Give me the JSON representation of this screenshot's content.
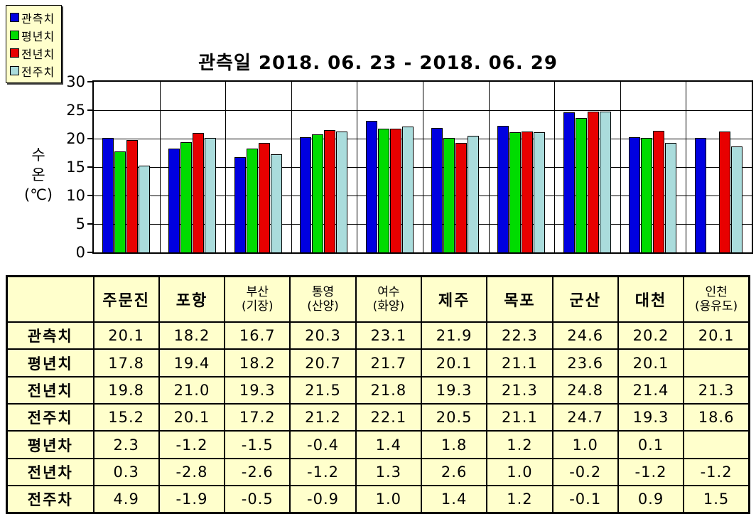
{
  "title": "관측일 2018. 06. 23 - 2018. 06. 29",
  "y_axis": {
    "title_lines": [
      "수",
      "온",
      "(℃)"
    ],
    "ticks": [
      30,
      25,
      20,
      15,
      10,
      5,
      0
    ]
  },
  "legend": {
    "items": [
      {
        "label": "관측치",
        "color": "#0000E0"
      },
      {
        "label": "평년치",
        "color": "#00DC00"
      },
      {
        "label": "전년치",
        "color": "#E80000"
      },
      {
        "label": "전주치",
        "color": "#AADCDC"
      }
    ]
  },
  "chart_data": {
    "type": "bar",
    "title": "관측일 2018. 06. 23 - 2018. 06. 29",
    "xlabel": "",
    "ylabel": "수온(℃)",
    "ylim": [
      0,
      30
    ],
    "yticks": [
      0,
      5,
      10,
      15,
      20,
      25,
      30
    ],
    "grid": true,
    "legend_position": "top-left",
    "categories": [
      "주문진",
      "포항",
      "부산(기장)",
      "통영(산양)",
      "여수(화양)",
      "제주",
      "목포",
      "군산",
      "대천",
      "인천(용유도)"
    ],
    "series": [
      {
        "name": "관측치",
        "color": "#0000E0",
        "values": [
          20.1,
          18.2,
          16.7,
          20.3,
          23.1,
          21.9,
          22.3,
          24.6,
          20.2,
          20.1
        ]
      },
      {
        "name": "평년치",
        "color": "#00DC00",
        "values": [
          17.8,
          19.4,
          18.2,
          20.7,
          21.7,
          20.1,
          21.1,
          23.6,
          20.1,
          null
        ]
      },
      {
        "name": "전년치",
        "color": "#E80000",
        "values": [
          19.8,
          21.0,
          19.3,
          21.5,
          21.8,
          19.3,
          21.3,
          24.8,
          21.4,
          21.3
        ]
      },
      {
        "name": "전주치",
        "color": "#AADCDC",
        "values": [
          15.2,
          20.1,
          17.2,
          21.2,
          22.1,
          20.5,
          21.1,
          24.7,
          19.3,
          18.6
        ]
      }
    ]
  },
  "table": {
    "corner_header": "",
    "col_headers": [
      {
        "lines": [
          "주문진"
        ]
      },
      {
        "lines": [
          "포항"
        ]
      },
      {
        "lines": [
          "부산",
          "(기장)"
        ]
      },
      {
        "lines": [
          "통영",
          "(산양)"
        ]
      },
      {
        "lines": [
          "여수",
          "(화양)"
        ]
      },
      {
        "lines": [
          "제주"
        ]
      },
      {
        "lines": [
          "목포"
        ]
      },
      {
        "lines": [
          "군산"
        ]
      },
      {
        "lines": [
          "대천"
        ]
      },
      {
        "lines": [
          "인천",
          "(용유도)"
        ]
      }
    ],
    "rows": [
      {
        "label": "관측치",
        "bold": false,
        "values": [
          "20.1",
          "18.2",
          "16.7",
          "20.3",
          "23.1",
          "21.9",
          "22.3",
          "24.6",
          "20.2",
          "20.1"
        ]
      },
      {
        "label": "평년치",
        "bold": false,
        "values": [
          "17.8",
          "19.4",
          "18.2",
          "20.7",
          "21.7",
          "20.1",
          "21.1",
          "23.6",
          "20.1",
          ""
        ]
      },
      {
        "label": "전년치",
        "bold": false,
        "values": [
          "19.8",
          "21.0",
          "19.3",
          "21.5",
          "21.8",
          "19.3",
          "21.3",
          "24.8",
          "21.4",
          "21.3"
        ]
      },
      {
        "label": "전주치",
        "bold": false,
        "values": [
          "15.2",
          "20.1",
          "17.2",
          "21.2",
          "22.1",
          "20.5",
          "21.1",
          "24.7",
          "19.3",
          "18.6"
        ]
      },
      {
        "label": "평년차",
        "bold": true,
        "values": [
          "2.3",
          "-1.2",
          "-1.5",
          "-0.4",
          "1.4",
          "1.8",
          "1.2",
          "1.0",
          "0.1",
          ""
        ]
      },
      {
        "label": "전년차",
        "bold": true,
        "values": [
          "0.3",
          "-2.8",
          "-2.6",
          "-1.2",
          "1.3",
          "2.6",
          "1.0",
          "-0.2",
          "-1.2",
          "-1.2"
        ]
      },
      {
        "label": "전주차",
        "bold": true,
        "values": [
          "4.9",
          "-1.9",
          "-0.5",
          "-0.9",
          "1.0",
          "1.4",
          "1.2",
          "-0.1",
          "0.9",
          "1.5"
        ]
      }
    ]
  },
  "colors": {
    "table_background": "#FFFFCC",
    "legend_background": "#FFFFCC",
    "plot_background": "#FFFFFF",
    "axis_line": "#000000"
  }
}
